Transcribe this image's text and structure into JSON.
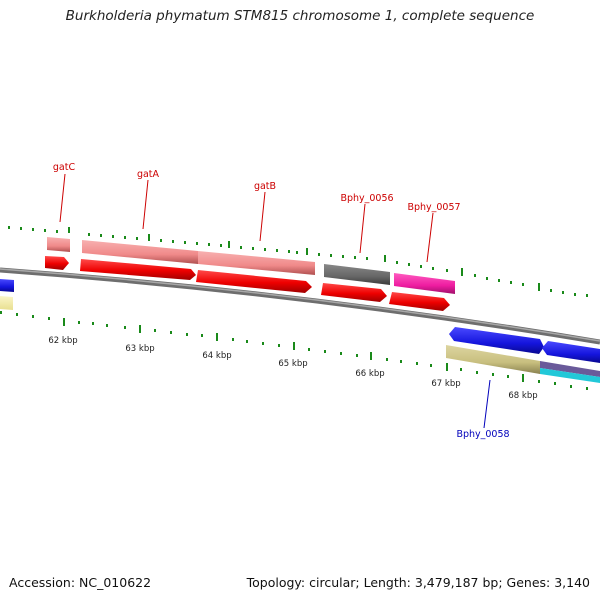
{
  "title": "Burkholderia phymatum STM815 chromosome 1, complete sequence",
  "footer": {
    "accession": "Accession: NC_010622",
    "summary": "Topology: circular; Length: 3,479,187 bp; Genes: 3,140"
  },
  "colors": {
    "cds_forward": "#ee0000",
    "gene_pink": "#f08a8a",
    "gene_gray": "#666666",
    "gene_magenta": "#ee1ca0",
    "cds_blue": "#1515dd",
    "gene_khaki": "#c8bf7f",
    "gene_yellow": "#f2eca0",
    "gene_cyan": "#22c8d8",
    "backbone": "#808080",
    "tick": "#1a8a1a",
    "label_red": "#cc0000",
    "label_blue": "#0000bb"
  },
  "scale_labels": [
    "62 kbp",
    "63 kbp",
    "64 kbp",
    "65 kbp",
    "66 kbp",
    "67 kbp",
    "68 kbp"
  ],
  "gene_labels": [
    {
      "text": "gatC",
      "strand": "top"
    },
    {
      "text": "gatA",
      "strand": "top"
    },
    {
      "text": "gatB",
      "strand": "top"
    },
    {
      "text": "Bphy_0056",
      "strand": "top"
    },
    {
      "text": "Bphy_0057",
      "strand": "top"
    },
    {
      "text": "Bphy_0058",
      "strand": "bottom"
    }
  ]
}
